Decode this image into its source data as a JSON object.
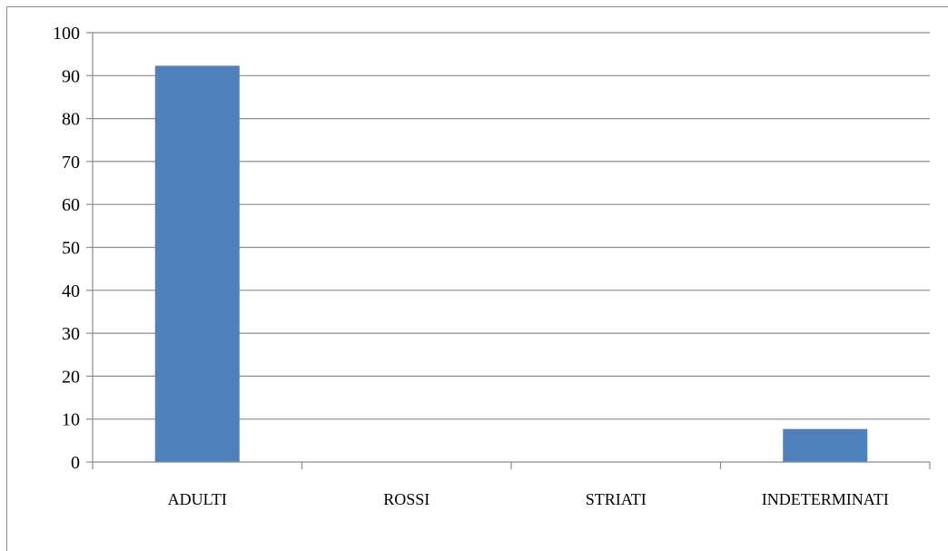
{
  "chart_data": {
    "type": "bar",
    "categories": [
      "ADULTI",
      "ROSSI",
      "STRIATI",
      "INDETERMINATI"
    ],
    "values": [
      92.3,
      0,
      0,
      7.7
    ],
    "title": "",
    "xlabel": "",
    "ylabel": "",
    "ylim": [
      0,
      100
    ],
    "yticks": [
      0,
      10,
      20,
      30,
      40,
      50,
      60,
      70,
      80,
      90,
      100
    ],
    "grid": true,
    "legend": "none",
    "bar_color": "#4f81bd"
  }
}
